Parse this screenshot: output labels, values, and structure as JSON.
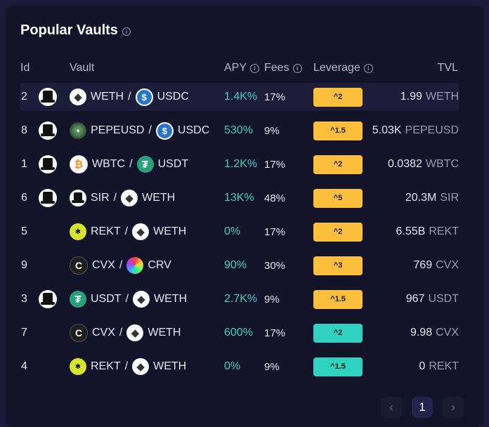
{
  "title": "Popular Vaults",
  "columns": {
    "id": "Id",
    "vault": "Vault",
    "apy": "APY",
    "fees": "Fees",
    "leverage": "Leverage",
    "tvl": "TVL"
  },
  "colors": {
    "leverage_orange": "#fbbf3c",
    "leverage_teal": "#2fd2bf",
    "apy": "#3fd0bf"
  },
  "rows": [
    {
      "id": "2",
      "hat": true,
      "t1": "WETH",
      "t1_icon": "eth-icon",
      "t2": "USDC",
      "t2_icon": "usdc-icon",
      "apy": "1.4K%",
      "fees": "17%",
      "lev": "^2",
      "lev_color": "orange",
      "tvl": "1.99",
      "tvl_unit": "WETH",
      "active": true
    },
    {
      "id": "8",
      "hat": true,
      "t1": "PEPEUSD",
      "t1_icon": "pepe-icon",
      "t2": "USDC",
      "t2_icon": "usdc-icon",
      "apy": "530%",
      "fees": "9%",
      "lev": "^1.5",
      "lev_color": "orange",
      "tvl": "5.03K",
      "tvl_unit": "PEPEUSD"
    },
    {
      "id": "1",
      "hat": true,
      "t1": "WBTC",
      "t1_icon": "btc-icon",
      "t2": "USDT",
      "t2_icon": "usdt-icon",
      "apy": "1.2K%",
      "fees": "17%",
      "lev": "^2",
      "lev_color": "orange",
      "tvl": "0.0382",
      "tvl_unit": "WBTC"
    },
    {
      "id": "6",
      "hat": true,
      "t1": "SIR",
      "t1_icon": "sir-icon",
      "t2": "WETH",
      "t2_icon": "eth-icon",
      "apy": "13K%",
      "fees": "48%",
      "lev": "^5",
      "lev_color": "orange",
      "tvl": "20.3M",
      "tvl_unit": "SIR"
    },
    {
      "id": "5",
      "hat": false,
      "t1": "REKT",
      "t1_icon": "rekt-icon",
      "t2": "WETH",
      "t2_icon": "eth-icon",
      "apy": "0%",
      "fees": "17%",
      "lev": "^2",
      "lev_color": "orange",
      "tvl": "6.55B",
      "tvl_unit": "REKT"
    },
    {
      "id": "9",
      "hat": false,
      "t1": "CVX",
      "t1_icon": "cvx-icon",
      "t2": "CRV",
      "t2_icon": "crv-icon",
      "apy": "90%",
      "fees": "30%",
      "lev": "^3",
      "lev_color": "orange",
      "tvl": "769",
      "tvl_unit": "CVX"
    },
    {
      "id": "3",
      "hat": true,
      "t1": "USDT",
      "t1_icon": "usdt-icon",
      "t2": "WETH",
      "t2_icon": "eth-icon",
      "apy": "2.7K%",
      "fees": "9%",
      "lev": "^1.5",
      "lev_color": "orange",
      "tvl": "967",
      "tvl_unit": "USDT"
    },
    {
      "id": "7",
      "hat": false,
      "t1": "CVX",
      "t1_icon": "cvx-icon",
      "t2": "WETH",
      "t2_icon": "eth-icon",
      "apy": "600%",
      "fees": "17%",
      "lev": "^2",
      "lev_color": "teal",
      "tvl": "9.98",
      "tvl_unit": "CVX"
    },
    {
      "id": "4",
      "hat": false,
      "t1": "REKT",
      "t1_icon": "rekt-icon",
      "t2": "WETH",
      "t2_icon": "eth-icon",
      "apy": "0%",
      "fees": "9%",
      "lev": "^1.5",
      "lev_color": "teal",
      "tvl": "0",
      "tvl_unit": "REKT"
    }
  ],
  "pagination": {
    "current": "1",
    "prev_icon": "chevron-left-icon",
    "next_icon": "chevron-right-icon"
  }
}
